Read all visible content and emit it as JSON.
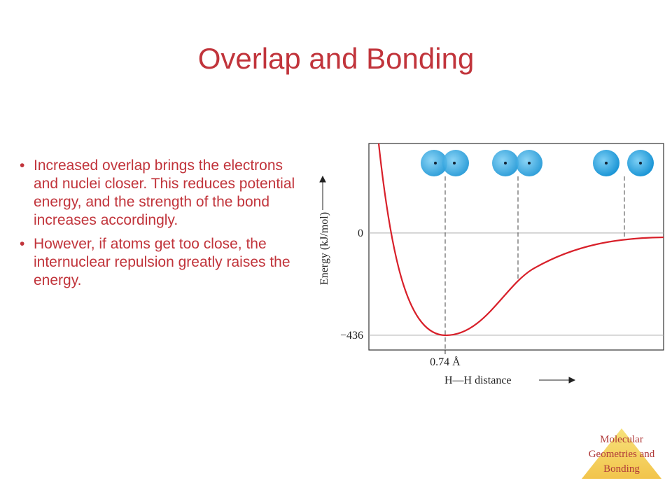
{
  "title": "Overlap and Bonding",
  "bullets": [
    "Increased overlap brings the electrons and nuclei closer. This reduces potential energy, and the strength of the bond increases accordingly.",
    "However, if atoms get too close, the internuclear repulsion greatly raises the energy."
  ],
  "chart": {
    "ylabel": "Energy (kJ/mol)",
    "xlabel": "H—H distance",
    "ylim": [
      -499,
      382
    ],
    "yticks": [
      0,
      {
        "value": -436,
        "label": "−436"
      }
    ],
    "xlim": [
      0.3,
      2.0
    ],
    "xticks": [
      {
        "value": 0.74,
        "label": "0.74 Å"
      }
    ]
  },
  "footer": "Molecular Geometries and Bonding"
}
